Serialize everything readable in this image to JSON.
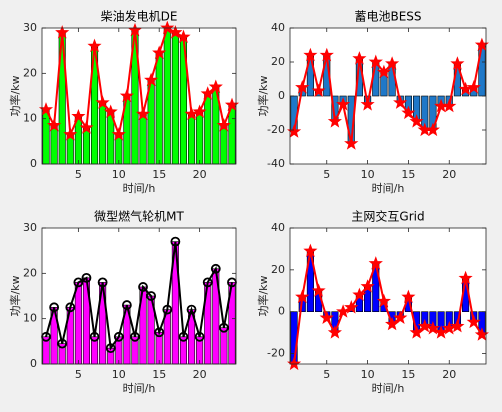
{
  "chart_data": [
    {
      "type": "bar",
      "title": "柴油发电机DE",
      "xlabel": "时间/h",
      "ylabel": "功率/kw",
      "color": "#00ff00",
      "line_color": "#ff0000",
      "marker": "star",
      "x": [
        1,
        2,
        3,
        4,
        5,
        6,
        7,
        8,
        9,
        10,
        11,
        12,
        13,
        14,
        15,
        16,
        17,
        18,
        19,
        20,
        21,
        22,
        23,
        24
      ],
      "values": [
        12,
        8.5,
        29,
        6.5,
        10.5,
        8,
        26,
        13.5,
        11.5,
        6.5,
        15,
        29.5,
        11,
        18.5,
        24.5,
        30,
        29,
        28,
        11,
        11.5,
        15.5,
        17,
        8.5,
        13
      ],
      "xlim": [
        0.5,
        24.5
      ],
      "xticks": [
        5,
        10,
        15,
        20
      ],
      "ylim": [
        0,
        30
      ],
      "yticks": [
        0,
        10,
        20,
        30
      ]
    },
    {
      "type": "bar",
      "title": "蓄电池BESS",
      "xlabel": "时间/h",
      "ylabel": "功率/kw",
      "color": "#1f78c8",
      "line_color": "#ff0000",
      "marker": "star",
      "x": [
        1,
        2,
        3,
        4,
        5,
        6,
        7,
        8,
        9,
        10,
        11,
        12,
        13,
        14,
        15,
        16,
        17,
        18,
        19,
        20,
        21,
        22,
        23,
        24
      ],
      "values": [
        -21,
        5,
        24,
        3,
        24,
        -15,
        -5,
        -28,
        22,
        -5,
        20,
        14,
        19,
        -4,
        -10,
        -15,
        -20,
        -20,
        -6,
        -6,
        19,
        4,
        5,
        30
      ],
      "xlim": [
        0.5,
        24.5
      ],
      "xticks": [
        5,
        10,
        15,
        20
      ],
      "ylim": [
        -40,
        40
      ],
      "yticks": [
        -40,
        -20,
        0,
        20,
        40
      ]
    },
    {
      "type": "bar",
      "title": "微型燃气轮机MT",
      "xlabel": "时间/h",
      "ylabel": "功率/kw",
      "color": "#ff00ff",
      "line_color": "#000000",
      "marker": "circle",
      "x": [
        1,
        2,
        3,
        4,
        5,
        6,
        7,
        8,
        9,
        10,
        11,
        12,
        13,
        14,
        15,
        16,
        17,
        18,
        19,
        20,
        21,
        22,
        23,
        24
      ],
      "values": [
        6,
        12.5,
        4.5,
        12.5,
        18,
        19,
        6,
        18,
        3.5,
        6,
        13,
        6,
        17,
        15,
        7,
        12,
        27,
        6,
        12,
        6,
        18,
        21,
        8,
        18
      ],
      "xlim": [
        0.5,
        24.5
      ],
      "xticks": [
        5,
        10,
        15,
        20
      ],
      "ylim": [
        0,
        30
      ],
      "yticks": [
        0,
        10,
        20,
        30
      ]
    },
    {
      "type": "bar",
      "title": "主网交互Grid",
      "xlabel": "时间/h",
      "ylabel": "功率/kw",
      "color": "#0000ff",
      "line_color": "#ff0000",
      "marker": "star",
      "x": [
        1,
        2,
        3,
        4,
        5,
        6,
        7,
        8,
        9,
        10,
        11,
        12,
        13,
        14,
        15,
        16,
        17,
        18,
        19,
        20,
        21,
        22,
        23,
        24
      ],
      "values": [
        -25,
        7,
        29,
        10,
        -3,
        -10,
        0,
        2,
        8,
        12,
        23,
        5,
        -6,
        -3,
        7,
        -10,
        -7,
        -8,
        -10,
        -8,
        -7,
        16,
        -5,
        -11
      ],
      "xlim": [
        0.5,
        24.5
      ],
      "xticks": [
        5,
        10,
        15,
        20
      ],
      "ylim": [
        -25,
        40
      ],
      "yticks": [
        -20,
        0,
        20,
        40
      ]
    }
  ]
}
